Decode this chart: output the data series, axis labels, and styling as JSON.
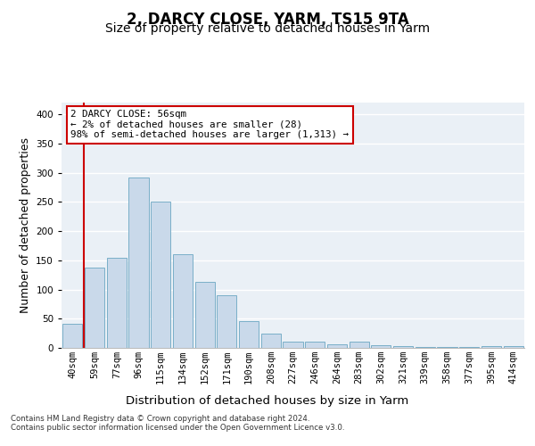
{
  "title": "2, DARCY CLOSE, YARM, TS15 9TA",
  "subtitle": "Size of property relative to detached houses in Yarm",
  "xlabel": "Distribution of detached houses by size in Yarm",
  "ylabel": "Number of detached properties",
  "categories": [
    "40sqm",
    "59sqm",
    "77sqm",
    "96sqm",
    "115sqm",
    "134sqm",
    "152sqm",
    "171sqm",
    "190sqm",
    "208sqm",
    "227sqm",
    "246sqm",
    "264sqm",
    "283sqm",
    "302sqm",
    "321sqm",
    "339sqm",
    "358sqm",
    "377sqm",
    "395sqm",
    "414sqm"
  ],
  "values": [
    42,
    138,
    155,
    292,
    251,
    160,
    113,
    90,
    46,
    25,
    10,
    11,
    6,
    10,
    4,
    3,
    2,
    2,
    1,
    3,
    3
  ],
  "bar_color": "#c9d9ea",
  "bar_edge_color": "#7aafc8",
  "highlight_color": "#cc0000",
  "annotation_text": "2 DARCY CLOSE: 56sqm\n← 2% of detached houses are smaller (28)\n98% of semi-detached houses are larger (1,313) →",
  "annotation_box_color": "#ffffff",
  "annotation_box_edge": "#cc0000",
  "footer_text": "Contains HM Land Registry data © Crown copyright and database right 2024.\nContains public sector information licensed under the Open Government Licence v3.0.",
  "ylim": [
    0,
    420
  ],
  "background_color": "#eaf0f6",
  "grid_color": "#ffffff",
  "title_fontsize": 12,
  "subtitle_fontsize": 10,
  "tick_fontsize": 7.5,
  "ylabel_fontsize": 9,
  "xlabel_fontsize": 9.5
}
